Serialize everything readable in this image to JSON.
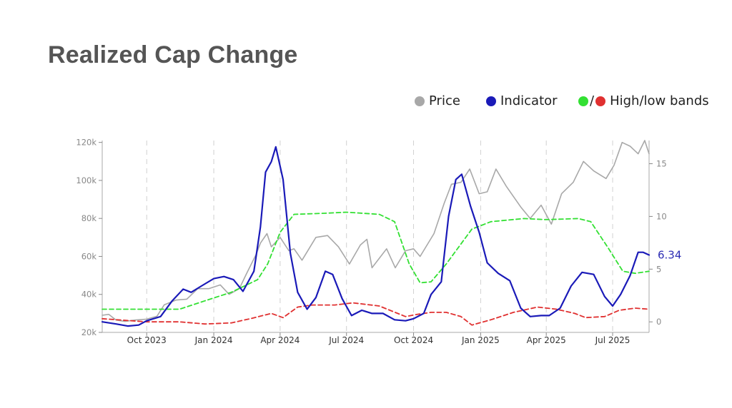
{
  "header": {
    "title": "Realized Cap Change"
  },
  "legend": {
    "price": "Price",
    "indicator": "Indicator",
    "bands_slash": "/",
    "bands": "High/low bands"
  },
  "colors": {
    "price": "#a8a8a8",
    "indicator": "#1a1ab8",
    "high_band": "#33e033",
    "low_band": "#e03030"
  },
  "chart_data": {
    "type": "line",
    "x_axis": {
      "type": "date",
      "range": [
        "2023-08-01",
        "2025-08-20"
      ],
      "ticks": [
        {
          "date": "2023-10-01",
          "label": "Oct 2023"
        },
        {
          "date": "2024-01-01",
          "label": "Jan 2024"
        },
        {
          "date": "2024-04-01",
          "label": "Apr 2024"
        },
        {
          "date": "2024-07-01",
          "label": "Jul 2024"
        },
        {
          "date": "2024-10-01",
          "label": "Oct 2024"
        },
        {
          "date": "2025-01-01",
          "label": "Jan 2025"
        },
        {
          "date": "2025-04-01",
          "label": "Apr 2025"
        },
        {
          "date": "2025-07-01",
          "label": "Jul 2025"
        }
      ],
      "grid": "dashed vertical"
    },
    "y_left": {
      "range": [
        20000,
        121000
      ],
      "ticks": [
        {
          "value": 20000,
          "label": "20k"
        },
        {
          "value": 40000,
          "label": "40k"
        },
        {
          "value": 60000,
          "label": "60k"
        },
        {
          "value": 80000,
          "label": "80k"
        },
        {
          "value": 100000,
          "label": "100k"
        },
        {
          "value": 120000,
          "label": "120k"
        }
      ]
    },
    "y_right": {
      "range": [
        -1,
        17.2
      ],
      "ticks": [
        {
          "value": 0,
          "label": "0"
        },
        {
          "value": 5,
          "label": "5"
        },
        {
          "value": 10,
          "label": "10"
        },
        {
          "value": 15,
          "label": "15"
        }
      ]
    },
    "last_value_label": "6.34",
    "series": [
      {
        "name": "Price",
        "axis": "left",
        "points": [
          [
            "2023-08-01",
            29000
          ],
          [
            "2023-08-10",
            29500
          ],
          [
            "2023-08-20",
            26500
          ],
          [
            "2023-09-01",
            25800
          ],
          [
            "2023-09-15",
            26500
          ],
          [
            "2023-10-01",
            27000
          ],
          [
            "2023-10-15",
            28500
          ],
          [
            "2023-10-25",
            34500
          ],
          [
            "2023-11-10",
            37000
          ],
          [
            "2023-11-25",
            37500
          ],
          [
            "2023-12-10",
            43000
          ],
          [
            "2023-12-25",
            43000
          ],
          [
            "2024-01-10",
            45000
          ],
          [
            "2024-01-22",
            40000
          ],
          [
            "2024-02-05",
            43000
          ],
          [
            "2024-02-15",
            51000
          ],
          [
            "2024-02-28",
            61000
          ],
          [
            "2024-03-05",
            67000
          ],
          [
            "2024-03-14",
            72000
          ],
          [
            "2024-03-20",
            65000
          ],
          [
            "2024-04-01",
            70000
          ],
          [
            "2024-04-13",
            63000
          ],
          [
            "2024-04-20",
            64000
          ],
          [
            "2024-05-01",
            58000
          ],
          [
            "2024-05-20",
            70000
          ],
          [
            "2024-06-05",
            71000
          ],
          [
            "2024-06-20",
            65000
          ],
          [
            "2024-07-05",
            56000
          ],
          [
            "2024-07-20",
            66000
          ],
          [
            "2024-07-29",
            69000
          ],
          [
            "2024-08-05",
            54000
          ],
          [
            "2024-08-25",
            64000
          ],
          [
            "2024-09-06",
            54000
          ],
          [
            "2024-09-20",
            63000
          ],
          [
            "2024-10-01",
            64000
          ],
          [
            "2024-10-10",
            60000
          ],
          [
            "2024-10-29",
            72000
          ],
          [
            "2024-11-12",
            88000
          ],
          [
            "2024-11-22",
            98000
          ],
          [
            "2024-12-05",
            99000
          ],
          [
            "2024-12-17",
            106000
          ],
          [
            "2024-12-30",
            93000
          ],
          [
            "2025-01-10",
            94000
          ],
          [
            "2025-01-22",
            106000
          ],
          [
            "2025-02-05",
            97000
          ],
          [
            "2025-02-25",
            86000
          ],
          [
            "2025-03-10",
            80000
          ],
          [
            "2025-03-25",
            87000
          ],
          [
            "2025-04-08",
            77000
          ],
          [
            "2025-04-22",
            93000
          ],
          [
            "2025-05-08",
            99000
          ],
          [
            "2025-05-22",
            110000
          ],
          [
            "2025-06-05",
            105000
          ],
          [
            "2025-06-22",
            101000
          ],
          [
            "2025-07-03",
            108000
          ],
          [
            "2025-07-14",
            120000
          ],
          [
            "2025-07-25",
            118000
          ],
          [
            "2025-08-05",
            114000
          ],
          [
            "2025-08-14",
            121000
          ],
          [
            "2025-08-20",
            114000
          ]
        ]
      },
      {
        "name": "Indicator",
        "axis": "right",
        "points": [
          [
            "2023-08-01",
            0.0
          ],
          [
            "2023-08-20",
            -0.2
          ],
          [
            "2023-09-05",
            -0.4
          ],
          [
            "2023-09-20",
            -0.3
          ],
          [
            "2023-10-01",
            0.1
          ],
          [
            "2023-10-20",
            0.5
          ],
          [
            "2023-11-05",
            2.0
          ],
          [
            "2023-11-20",
            3.1
          ],
          [
            "2023-12-01",
            2.8
          ],
          [
            "2023-12-15",
            3.4
          ],
          [
            "2024-01-01",
            4.1
          ],
          [
            "2024-01-15",
            4.3
          ],
          [
            "2024-01-28",
            4.0
          ],
          [
            "2024-02-10",
            2.9
          ],
          [
            "2024-02-25",
            4.8
          ],
          [
            "2024-03-05",
            9.0
          ],
          [
            "2024-03-12",
            14.2
          ],
          [
            "2024-03-20",
            15.2
          ],
          [
            "2024-03-26",
            16.6
          ],
          [
            "2024-04-05",
            13.5
          ],
          [
            "2024-04-15",
            6.5
          ],
          [
            "2024-04-25",
            2.8
          ],
          [
            "2024-05-08",
            1.2
          ],
          [
            "2024-05-20",
            2.3
          ],
          [
            "2024-06-02",
            4.8
          ],
          [
            "2024-06-12",
            4.5
          ],
          [
            "2024-06-25",
            2.2
          ],
          [
            "2024-07-08",
            0.6
          ],
          [
            "2024-07-22",
            1.1
          ],
          [
            "2024-08-05",
            0.8
          ],
          [
            "2024-08-20",
            0.8
          ],
          [
            "2024-09-05",
            0.2
          ],
          [
            "2024-09-20",
            0.1
          ],
          [
            "2024-10-01",
            0.3
          ],
          [
            "2024-10-15",
            0.8
          ],
          [
            "2024-10-25",
            2.6
          ],
          [
            "2024-11-08",
            3.8
          ],
          [
            "2024-11-18",
            10.0
          ],
          [
            "2024-11-28",
            13.5
          ],
          [
            "2024-12-06",
            14.0
          ],
          [
            "2024-12-18",
            11.0
          ],
          [
            "2024-12-30",
            8.5
          ],
          [
            "2025-01-10",
            5.6
          ],
          [
            "2025-01-25",
            4.6
          ],
          [
            "2025-02-10",
            3.9
          ],
          [
            "2025-02-25",
            1.3
          ],
          [
            "2025-03-10",
            0.5
          ],
          [
            "2025-03-25",
            0.6
          ],
          [
            "2025-04-05",
            0.6
          ],
          [
            "2025-04-20",
            1.3
          ],
          [
            "2025-05-05",
            3.4
          ],
          [
            "2025-05-20",
            4.7
          ],
          [
            "2025-06-05",
            4.5
          ],
          [
            "2025-06-20",
            2.4
          ],
          [
            "2025-07-01",
            1.5
          ],
          [
            "2025-07-12",
            2.6
          ],
          [
            "2025-07-25",
            4.4
          ],
          [
            "2025-08-05",
            6.6
          ],
          [
            "2025-08-12",
            6.6
          ],
          [
            "2025-08-20",
            6.34
          ]
        ]
      },
      {
        "name": "High band",
        "axis": "right",
        "style": "dashed",
        "points": [
          [
            "2023-08-01",
            1.2
          ],
          [
            "2023-10-01",
            1.2
          ],
          [
            "2023-11-15",
            1.2
          ],
          [
            "2023-12-20",
            2.0
          ],
          [
            "2024-01-25",
            2.8
          ],
          [
            "2024-03-01",
            4.0
          ],
          [
            "2024-03-15",
            5.5
          ],
          [
            "2024-04-01",
            8.5
          ],
          [
            "2024-04-20",
            10.2
          ],
          [
            "2024-06-01",
            10.3
          ],
          [
            "2024-07-01",
            10.4
          ],
          [
            "2024-08-15",
            10.2
          ],
          [
            "2024-09-05",
            9.5
          ],
          [
            "2024-09-25",
            5.5
          ],
          [
            "2024-10-10",
            3.7
          ],
          [
            "2024-10-25",
            3.8
          ],
          [
            "2024-11-15",
            5.5
          ],
          [
            "2024-12-20",
            8.8
          ],
          [
            "2025-01-15",
            9.5
          ],
          [
            "2025-03-01",
            9.8
          ],
          [
            "2025-04-01",
            9.7
          ],
          [
            "2025-05-15",
            9.8
          ],
          [
            "2025-06-01",
            9.5
          ],
          [
            "2025-06-25",
            7.0
          ],
          [
            "2025-07-15",
            4.8
          ],
          [
            "2025-08-01",
            4.6
          ],
          [
            "2025-08-20",
            4.8
          ]
        ]
      },
      {
        "name": "Low band",
        "axis": "right",
        "style": "dashed",
        "points": [
          [
            "2023-08-01",
            0.3
          ],
          [
            "2023-10-01",
            0.0
          ],
          [
            "2023-11-15",
            0.0
          ],
          [
            "2023-12-20",
            -0.2
          ],
          [
            "2024-01-25",
            -0.1
          ],
          [
            "2024-02-20",
            0.3
          ],
          [
            "2024-03-20",
            0.8
          ],
          [
            "2024-04-05",
            0.4
          ],
          [
            "2024-04-25",
            1.4
          ],
          [
            "2024-05-15",
            1.6
          ],
          [
            "2024-06-15",
            1.6
          ],
          [
            "2024-07-10",
            1.8
          ],
          [
            "2024-08-15",
            1.5
          ],
          [
            "2024-09-20",
            0.5
          ],
          [
            "2024-10-05",
            0.7
          ],
          [
            "2024-10-25",
            0.9
          ],
          [
            "2024-11-15",
            0.9
          ],
          [
            "2024-12-05",
            0.5
          ],
          [
            "2024-12-20",
            -0.3
          ],
          [
            "2025-01-15",
            0.2
          ],
          [
            "2025-02-15",
            0.9
          ],
          [
            "2025-03-20",
            1.4
          ],
          [
            "2025-04-15",
            1.2
          ],
          [
            "2025-05-10",
            0.8
          ],
          [
            "2025-05-25",
            0.4
          ],
          [
            "2025-06-20",
            0.5
          ],
          [
            "2025-07-10",
            1.1
          ],
          [
            "2025-08-01",
            1.3
          ],
          [
            "2025-08-20",
            1.2
          ]
        ]
      }
    ]
  }
}
